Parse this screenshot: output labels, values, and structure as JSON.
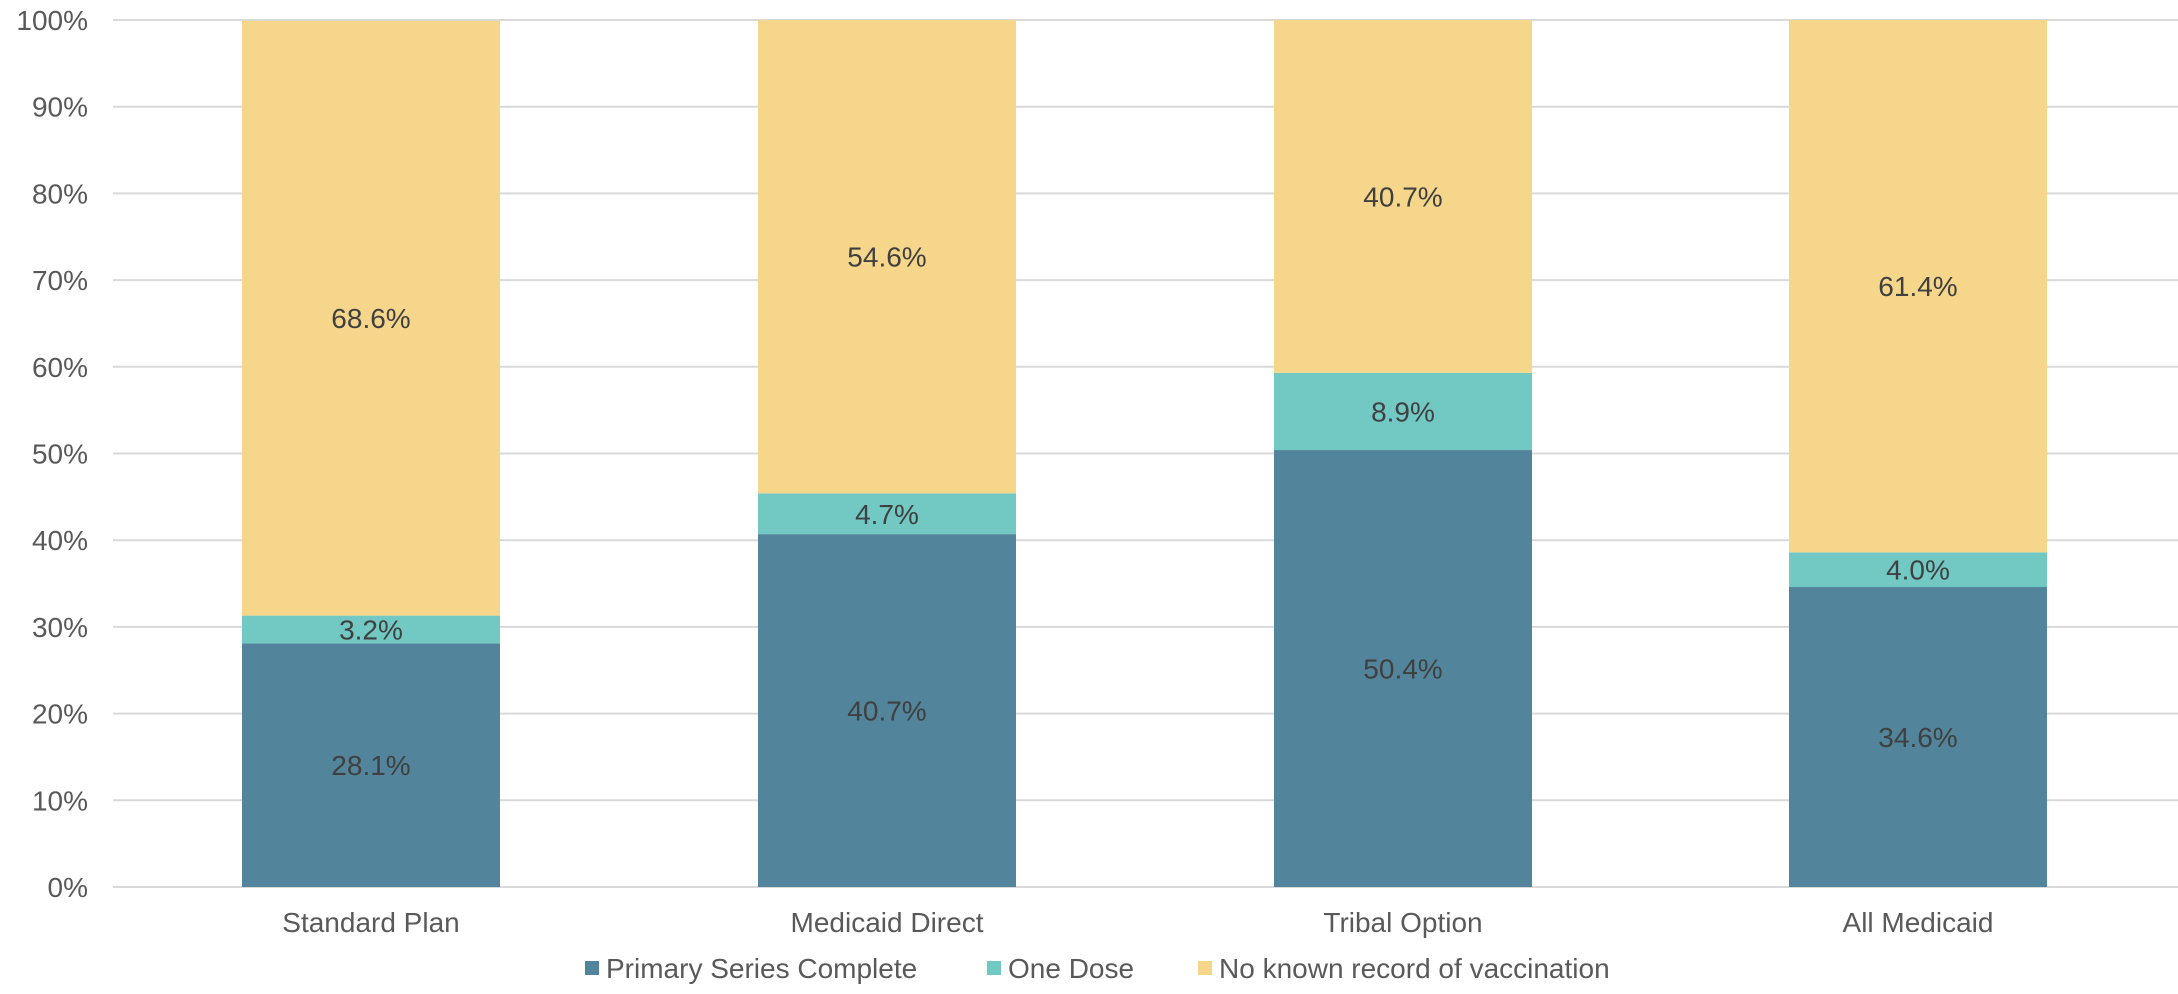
{
  "chart_data": {
    "type": "bar",
    "stacked": true,
    "categories": [
      "Standard Plan",
      "Medicaid Direct",
      "Tribal Option",
      "All Medicaid"
    ],
    "series": [
      {
        "name": "Primary Series Complete",
        "values": [
          28.1,
          40.7,
          50.4,
          34.6
        ],
        "labels": [
          "28.1%",
          "40.7%",
          "50.4%",
          "34.6%"
        ],
        "color": "#52849b"
      },
      {
        "name": "One Dose",
        "values": [
          3.2,
          4.7,
          8.9,
          4.0
        ],
        "labels": [
          "3.2%",
          "4.7%",
          "8.9%",
          "4.0%"
        ],
        "color": "#72c9c4"
      },
      {
        "name": "No known record of vaccination",
        "values": [
          68.6,
          54.6,
          40.7,
          61.4
        ],
        "labels": [
          "68.6%",
          "54.6%",
          "40.7%",
          "61.4%"
        ],
        "color": "#f6d68b"
      }
    ],
    "y_ticks": [
      "0%",
      "10%",
      "20%",
      "30%",
      "40%",
      "50%",
      "60%",
      "70%",
      "80%",
      "90%",
      "100%"
    ],
    "ylim": [
      0,
      100
    ],
    "title": "",
    "xlabel": "",
    "ylabel": "",
    "grid": true,
    "legend_position": "bottom"
  }
}
